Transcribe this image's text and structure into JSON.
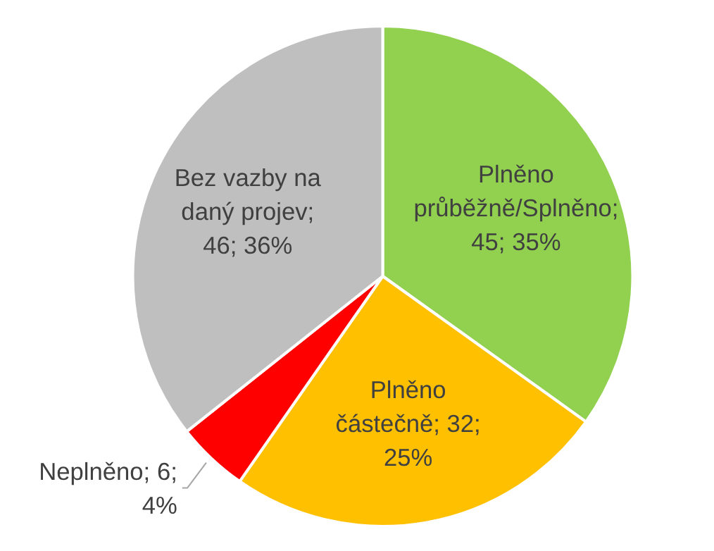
{
  "chart_data": {
    "type": "pie",
    "categories": [
      "Plněno průběžně/Splněno",
      "Plněno částečně",
      "Neplněno",
      "Bez vazby na daný projev"
    ],
    "values": [
      45,
      32,
      6,
      46
    ],
    "colors": [
      "#92d050",
      "#ffc000",
      "#ff0000",
      "#bfbfbf"
    ],
    "value_labels": [
      "; 45; 35%",
      "; 32; 25%",
      "; 6; 4%",
      "; 46; 36%"
    ]
  }
}
